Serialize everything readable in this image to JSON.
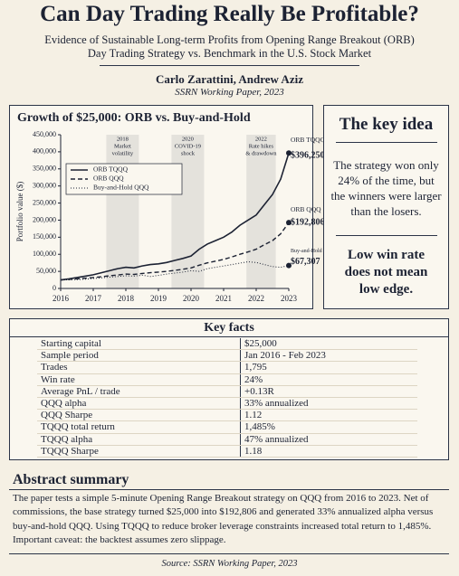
{
  "header": {
    "title": "Can Day Trading Really Be Profitable?",
    "subtitle_lines": [
      "Evidence of Sustainable Long-term Profits from Opening Range Breakout (ORB)",
      "Day Trading Strategy vs. Benchmark in the U.S. Stock Market"
    ],
    "authors": "Carlo Zarattini, Andrew Aziz",
    "publication": "SSRN Working Paper, 2023"
  },
  "chart_data": {
    "type": "line",
    "title": "Growth of $25,000: ORB vs. Buy-and-Hold",
    "y_label": "Portfolio value ($)",
    "x": [
      2016,
      2016.25,
      2016.5,
      2016.75,
      2017,
      2017.25,
      2017.5,
      2017.75,
      2018,
      2018.25,
      2018.5,
      2018.75,
      2019,
      2019.25,
      2019.5,
      2019.75,
      2020,
      2020.25,
      2020.5,
      2020.75,
      2021,
      2021.25,
      2021.5,
      2021.75,
      2022,
      2022.25,
      2022.5,
      2022.75,
      2023
    ],
    "series": [
      {
        "name": "ORB TQQQ",
        "color": "#1c2233",
        "dash": "solid",
        "end_value_label": "$396,250",
        "values": [
          25000,
          28000,
          32000,
          36000,
          40000,
          46000,
          52000,
          58000,
          62000,
          60000,
          66000,
          70000,
          72000,
          76000,
          82000,
          88000,
          95000,
          115000,
          130000,
          140000,
          150000,
          165000,
          185000,
          200000,
          215000,
          245000,
          275000,
          320000,
          396250
        ]
      },
      {
        "name": "ORB QQQ",
        "color": "#1c2233",
        "dash": "dashed",
        "end_value_label": "$192,806",
        "values": [
          25000,
          26500,
          28000,
          30000,
          32000,
          34500,
          37000,
          39500,
          42000,
          41000,
          44000,
          46000,
          48000,
          50000,
          53000,
          56000,
          60000,
          68000,
          75000,
          80000,
          85000,
          92000,
          100000,
          107000,
          115000,
          128000,
          140000,
          160000,
          192806
        ]
      },
      {
        "name": "Buy-and-Hold QQQ",
        "color": "#1c2233",
        "dash": "dotted",
        "end_value_label": "$67,307",
        "values": [
          25000,
          25500,
          26000,
          27000,
          29000,
          31000,
          33000,
          35000,
          37000,
          36000,
          39000,
          35000,
          38000,
          42000,
          45000,
          48000,
          52000,
          50000,
          58000,
          62000,
          66000,
          70000,
          74000,
          78000,
          76000,
          70000,
          64000,
          62000,
          67307
        ]
      }
    ],
    "xlim": [
      2016,
      2023
    ],
    "xticks": [
      2016,
      2017,
      2018,
      2019,
      2020,
      2021,
      2022,
      2023
    ],
    "ylim": [
      0,
      450000
    ],
    "yticks": [
      0,
      {
        "value": 50000,
        "label": "50,000"
      },
      {
        "value": 100000,
        "label": "100,000"
      },
      {
        "value": 150000,
        "label": "150,000"
      },
      {
        "value": 200000,
        "label": "200,000"
      },
      {
        "value": 250000,
        "label": "250,000"
      },
      {
        "value": 300000,
        "label": "300,000"
      },
      {
        "value": 350000,
        "label": "350,000"
      },
      {
        "value": 400000,
        "label": "400,000"
      },
      {
        "value": 450000,
        "label": "450,000"
      }
    ],
    "shaded_periods": [
      {
        "start": 2017.4,
        "end": 2018.4,
        "label_lines": [
          "2018",
          "Market",
          "volatility"
        ]
      },
      {
        "start": 2019.4,
        "end": 2020.4,
        "label_lines": [
          "2020",
          "COVID-19",
          "shock"
        ]
      },
      {
        "start": 2021.7,
        "end": 2022.6,
        "label_lines": [
          "2022",
          "Rate hikes",
          "& drawdown"
        ]
      }
    ],
    "legend": "upper left",
    "grid": false
  },
  "key_idea": {
    "title": "The key idea",
    "text": "The strategy won only 24% of the time, but the winners were larger than the losers.",
    "emphasis": "Low win rate does not mean low edge."
  },
  "table": {
    "title": "Key facts",
    "rows": [
      [
        "Starting capital",
        "$25,000"
      ],
      [
        "Sample period",
        "Jan 2016 - Feb 2023"
      ],
      [
        "Trades",
        "1,795"
      ],
      [
        "Win rate",
        "24%"
      ],
      [
        "Average PnL / trade",
        "+0.13R"
      ],
      [
        "QQQ alpha",
        "33% annualized"
      ],
      [
        "QQQ Sharpe",
        "1.12"
      ],
      [
        "TQQQ total return",
        "1,485%"
      ],
      [
        "TQQQ alpha",
        "47% annualized"
      ],
      [
        "TQQQ Sharpe",
        "1.18"
      ]
    ]
  },
  "abstract": {
    "title": "Abstract summary",
    "text": "The paper tests a simple 5-minute Opening Range Breakout strategy on QQQ from 2016 to 2023. Net of commissions, the base strategy turned $25,000 into $192,806 and generated 33% annualized alpha versus buy-and-hold QQQ. Using TQQQ to reduce broker leverage constraints increased total return to 1,485%. Important caveat: the backtest assumes zero slippage."
  },
  "footer": {
    "source": "Source: SSRN Working Paper, 2023"
  }
}
